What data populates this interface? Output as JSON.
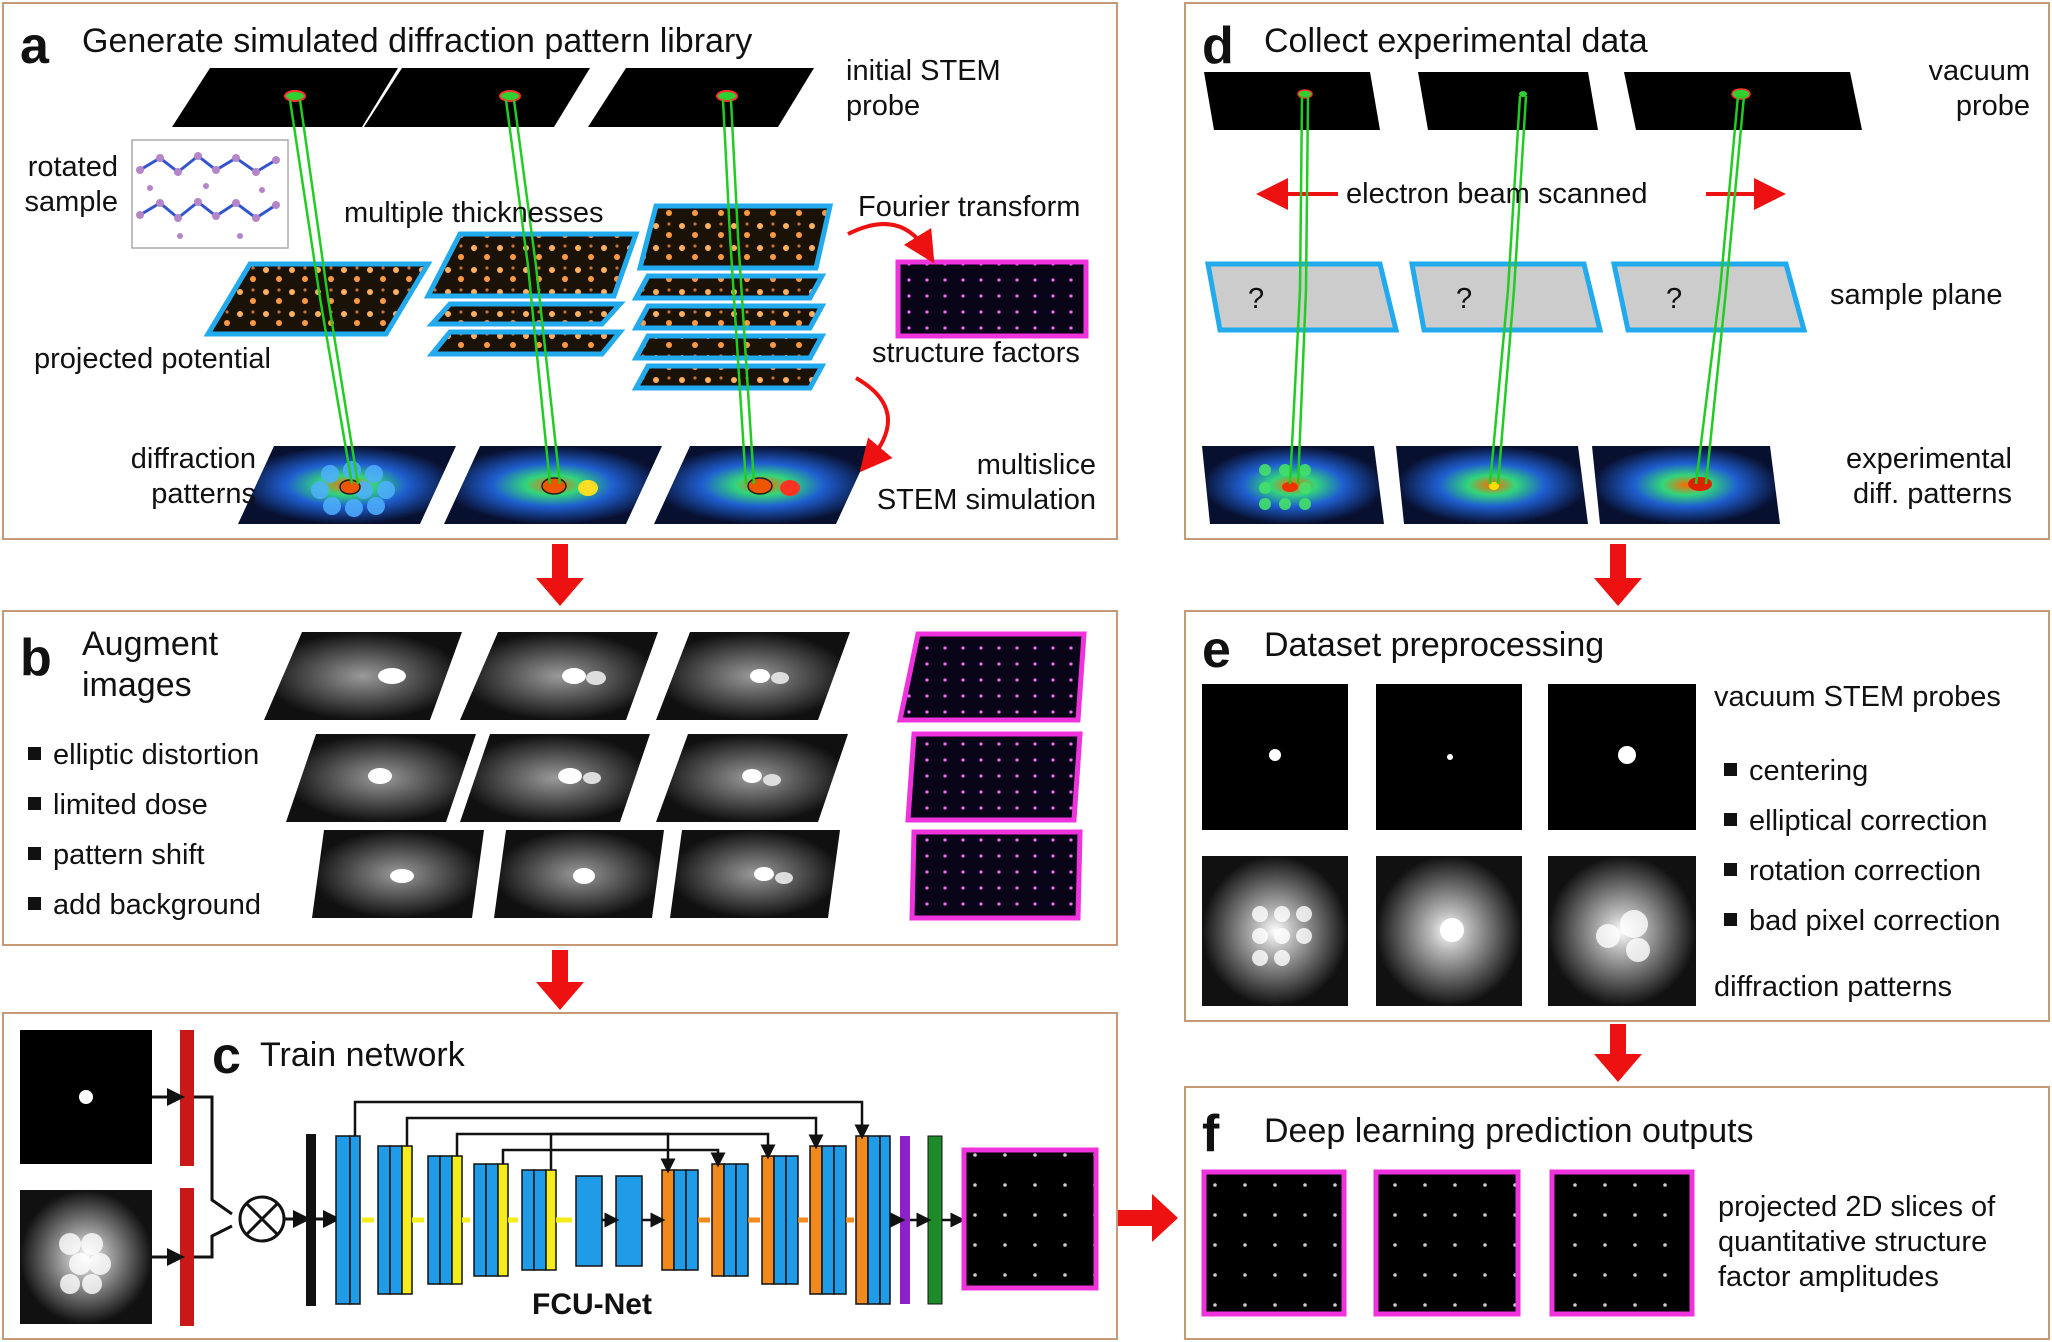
{
  "panels": {
    "a": {
      "letter": "a",
      "title": "Generate simulated diffraction pattern library",
      "labels": {
        "probe": "initial STEM\nprobe",
        "sample": "rotated\nsample",
        "thicknesses": "multiple thicknesses",
        "fourier": "Fourier transform",
        "potential": "projected potential",
        "factors": "structure factors",
        "patterns": "diffraction\npatterns",
        "multislice": "multislice\nSTEM simulation"
      }
    },
    "b": {
      "letter": "b",
      "title": "Augment\nimages",
      "bullets": [
        "elliptic distortion",
        "limited dose",
        "pattern shift",
        "add background"
      ]
    },
    "c": {
      "letter": "c",
      "title": "Train network",
      "network": "FCU-Net"
    },
    "d": {
      "letter": "d",
      "title": "Collect experimental data",
      "labels": {
        "probe": "vacuum\nprobe",
        "beam": "electron beam scanned",
        "plane": "sample plane",
        "patterns": "experimental\ndiff. patterns",
        "unknown": "?"
      }
    },
    "e": {
      "letter": "e",
      "title": "Dataset preprocessing",
      "probes_label": "vacuum STEM probes",
      "bullets": [
        "centering",
        "elliptical correction",
        "rotation correction",
        "bad pixel correction"
      ],
      "patterns_label": "diffraction patterns"
    },
    "f": {
      "letter": "f",
      "title": "Deep learning prediction outputs",
      "caption": "projected 2D slices of\nquantitative structure\nfactor amplitudes"
    }
  },
  "colors": {
    "panel_border": "#c59a74",
    "arrow": "#ee1111",
    "beam": "#22cc22",
    "slice_border": "#22aaee",
    "output_border": "#ee33dd",
    "encoder_block": "#1f9be8",
    "skip_block": "#f5ec1c",
    "decoder_block": "#f08a1e",
    "input_bar": "#c81818",
    "purple_layer": "#8a22c8",
    "green_layer": "#1e8a2a"
  },
  "icons": {
    "multiply": "circled-times-icon",
    "flow_arrow": "red-down-arrow-icon"
  }
}
